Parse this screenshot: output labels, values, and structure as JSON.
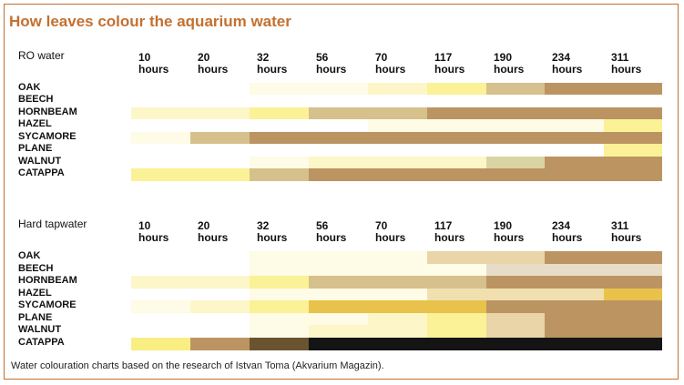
{
  "title": "How leaves colour the aquarium water",
  "caption": "Water colouration charts based on the research of Istvan Toma (Akvarium Magazin).",
  "colors": {
    "accent": "#c4702f",
    "w": "#ffffff",
    "y1": "#fefbe6",
    "y2": "#fcf6c8",
    "y3": "#fbf196",
    "y4": "#f9ee82",
    "y5": "#e8c24a",
    "t1": "#d6c08c",
    "t2": "#e9d5a8",
    "t3": "#f0e0b0",
    "p1": "#e7dcc8",
    "g1": "#d8d5a2",
    "br": "#bb9462",
    "dk": "#6a5430",
    "bk": "#141414"
  },
  "chart_data": [
    {
      "type": "heatmap",
      "title": "RO water",
      "x_tick_labels": [
        {
          "n": "10",
          "u": "hours"
        },
        {
          "n": "20",
          "u": "hours"
        },
        {
          "n": "32",
          "u": "hours"
        },
        {
          "n": "56",
          "u": "hours"
        },
        {
          "n": "70",
          "u": "hours"
        },
        {
          "n": "117",
          "u": "hours"
        },
        {
          "n": "190",
          "u": "hours"
        },
        {
          "n": "234",
          "u": "hours"
        },
        {
          "n": "311",
          "u": "hours"
        }
      ],
      "rows": [
        {
          "label": "OAK",
          "cells": [
            "w",
            "w",
            "y1",
            "y1",
            "y2",
            "y3",
            "t1",
            "br",
            "br"
          ]
        },
        {
          "label": "BEECH",
          "cells": [
            "w",
            "w",
            "w",
            "w",
            "w",
            "w",
            "w",
            "w",
            "w"
          ]
        },
        {
          "label": "HORNBEAM",
          "cells": [
            "y2",
            "y2",
            "y3",
            "t1",
            "t1",
            "br",
            "br",
            "br",
            "br"
          ]
        },
        {
          "label": "HAZEL",
          "cells": [
            "w",
            "w",
            "w",
            "w",
            "y1",
            "y1",
            "y1",
            "y1",
            "y3"
          ]
        },
        {
          "label": "SYCAMORE",
          "cells": [
            "y1",
            "t1",
            "br",
            "br",
            "br",
            "br",
            "br",
            "br",
            "br"
          ]
        },
        {
          "label": "PLANE",
          "cells": [
            "w",
            "w",
            "w",
            "w",
            "w",
            "w",
            "w",
            "w",
            "y3"
          ]
        },
        {
          "label": "WALNUT",
          "cells": [
            "w",
            "w",
            "y1",
            "y2",
            "y2",
            "y2",
            "g1",
            "br",
            "br"
          ]
        },
        {
          "label": "CATAPPA",
          "cells": [
            "y3",
            "y3",
            "t1",
            "br",
            "br",
            "br",
            "br",
            "br",
            "br"
          ]
        }
      ]
    },
    {
      "type": "heatmap",
      "title": "Hard tapwater",
      "x_tick_labels": [
        {
          "n": "10",
          "u": "hours"
        },
        {
          "n": "20",
          "u": "hours"
        },
        {
          "n": "32",
          "u": "hours"
        },
        {
          "n": "56",
          "u": "hours"
        },
        {
          "n": "70",
          "u": "hours"
        },
        {
          "n": "117",
          "u": "hours"
        },
        {
          "n": "190",
          "u": "hours"
        },
        {
          "n": "234",
          "u": "hours"
        },
        {
          "n": "311",
          "u": "hours"
        }
      ],
      "rows": [
        {
          "label": "OAK",
          "cells": [
            "w",
            "w",
            "y1",
            "y1",
            "y1",
            "t2",
            "t2",
            "br",
            "br"
          ]
        },
        {
          "label": "BEECH",
          "cells": [
            "w",
            "w",
            "y1",
            "y1",
            "y1",
            "y1",
            "p1",
            "p1",
            "p1"
          ]
        },
        {
          "label": "HORNBEAM",
          "cells": [
            "y2",
            "y2",
            "y3",
            "t1",
            "t1",
            "t1",
            "br",
            "br",
            "br"
          ]
        },
        {
          "label": "HAZEL",
          "cells": [
            "w",
            "w",
            "y1",
            "y1",
            "y1",
            "t3",
            "t3",
            "t3",
            "y5"
          ]
        },
        {
          "label": "SYCAMORE",
          "cells": [
            "y1",
            "y2",
            "y3",
            "y5",
            "y5",
            "y5",
            "br",
            "br",
            "br"
          ]
        },
        {
          "label": "PLANE",
          "cells": [
            "w",
            "w",
            "y1",
            "y1",
            "y2",
            "y3",
            "t2",
            "br",
            "br"
          ]
        },
        {
          "label": "WALNUT",
          "cells": [
            "w",
            "w",
            "y1",
            "y2",
            "y2",
            "y3",
            "t2",
            "br",
            "br"
          ]
        },
        {
          "label": "CATAPPA",
          "cells": [
            "y4",
            "br",
            "dk",
            "bk",
            "bk",
            "bk",
            "bk",
            "bk",
            "bk"
          ]
        }
      ]
    }
  ]
}
